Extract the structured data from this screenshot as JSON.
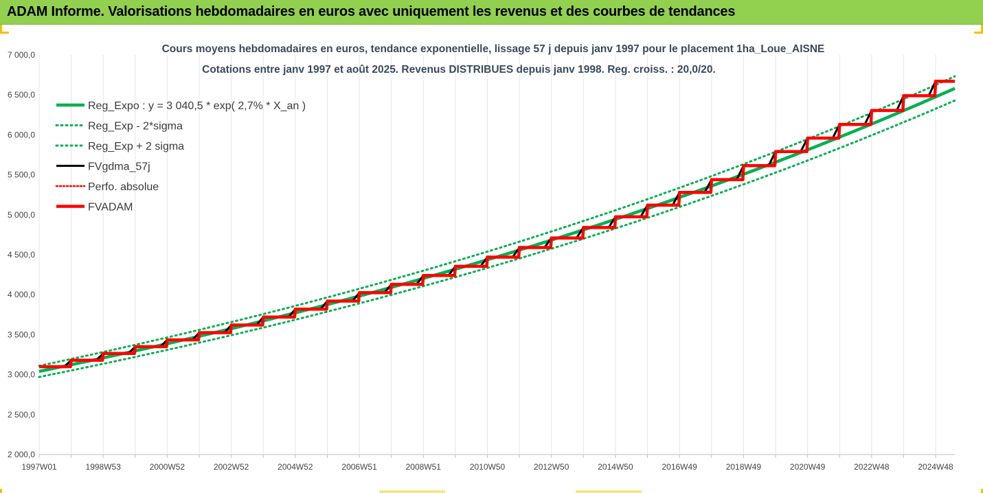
{
  "banner": {
    "title": "ADAM Informe. Valorisations hebdomadaires en euros avec uniquement les revenus et des courbes de tendances"
  },
  "colors": {
    "banner_bg": "#92d050",
    "trend": "#00b050",
    "fv57": "#000000",
    "fvadam": "#ff0000",
    "corner": "#f2c200"
  },
  "chart_data": {
    "type": "line",
    "title": "Cours moyens hebdomadaires en euros, tendance exponentielle, lissage 57 j depuis janv 1997 pour le placement 1ha_Loue_AISNE",
    "subtitle": "Cotations entre janv 1997 et août 2025. Revenus DISTRIBUES depuis janv 1998. Reg. croiss. : 20,0/20.",
    "ylim": [
      2000,
      7000
    ],
    "y_ticks": [
      "2 000,0",
      "2 500,0",
      "3 000,0",
      "3 500,0",
      "4 000,0",
      "4 500,0",
      "5 000,0",
      "5 500,0",
      "6 000,0",
      "6 500,0",
      "7 000,0"
    ],
    "x_tick_labels": [
      "1997W01",
      "1998W53",
      "2000W52",
      "2002W52",
      "2004W52",
      "2006W51",
      "2008W51",
      "2010W50",
      "2012W50",
      "2014W50",
      "2016W49",
      "2018W49",
      "2020W49",
      "2022W48",
      "2024W48"
    ],
    "x_range_years": [
      1997.0,
      2025.6
    ],
    "grid": "vertical",
    "legend_position": "top-left",
    "series": [
      {
        "name": "Reg_Expo : y = 3 040,5 * exp( 2,7% *  X_an )",
        "style": "solid-green-thick",
        "x": [
          1997.0,
          2025.6
        ],
        "a": 3040.5,
        "rate": 0.027
      },
      {
        "name": "Reg_Exp - 2*sigma",
        "style": "dotted-green",
        "offset_pct": -2.3
      },
      {
        "name": "Reg_Exp + 2 sigma",
        "style": "dotted-green",
        "offset_pct": 2.3
      },
      {
        "name": "FVgdma_57j",
        "style": "solid-black"
      },
      {
        "name": "Perfo. absolue",
        "style": "dotted-red"
      },
      {
        "name": "FVADAM",
        "style": "solid-red-thick",
        "steps": [
          {
            "year": 1997.0,
            "value": 3100
          },
          {
            "year": 1998.0,
            "value": 3180
          },
          {
            "year": 1999.0,
            "value": 3265
          },
          {
            "year": 2000.0,
            "value": 3350
          },
          {
            "year": 2001.0,
            "value": 3435
          },
          {
            "year": 2002.0,
            "value": 3525
          },
          {
            "year": 2003.0,
            "value": 3620
          },
          {
            "year": 2004.0,
            "value": 3720
          },
          {
            "year": 2005.0,
            "value": 3820
          },
          {
            "year": 2006.0,
            "value": 3920
          },
          {
            "year": 2007.0,
            "value": 4025
          },
          {
            "year": 2008.0,
            "value": 4130
          },
          {
            "year": 2009.0,
            "value": 4240
          },
          {
            "year": 2010.0,
            "value": 4355
          },
          {
            "year": 2011.0,
            "value": 4470
          },
          {
            "year": 2012.0,
            "value": 4590
          },
          {
            "year": 2013.0,
            "value": 4710
          },
          {
            "year": 2014.0,
            "value": 4840
          },
          {
            "year": 2015.0,
            "value": 4975
          },
          {
            "year": 2016.0,
            "value": 5120
          },
          {
            "year": 2017.0,
            "value": 5280
          },
          {
            "year": 2018.0,
            "value": 5440
          },
          {
            "year": 2019.0,
            "value": 5615
          },
          {
            "year": 2020.0,
            "value": 5790
          },
          {
            "year": 2021.0,
            "value": 5960
          },
          {
            "year": 2022.0,
            "value": 6130
          },
          {
            "year": 2023.0,
            "value": 6305
          },
          {
            "year": 2024.0,
            "value": 6490
          },
          {
            "year": 2025.0,
            "value": 6670
          }
        ]
      }
    ]
  }
}
